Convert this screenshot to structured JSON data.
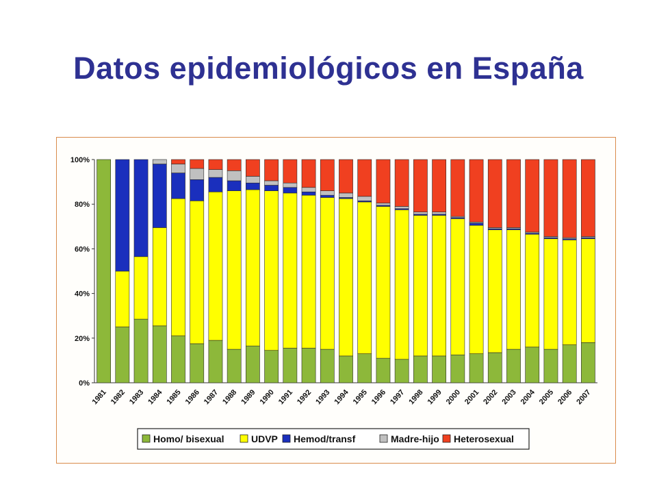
{
  "slide": {
    "title": "Datos epidemiológicos en España"
  },
  "chart_data": {
    "type": "bar",
    "stacked": true,
    "normalized": true,
    "categories": [
      "1981",
      "1982",
      "1983",
      "1984",
      "1985",
      "1986",
      "1987",
      "1988",
      "1989",
      "1990",
      "1991",
      "1992",
      "1993",
      "1994",
      "1995",
      "1996",
      "1997",
      "1998",
      "1999",
      "2000",
      "2001",
      "2002",
      "2003",
      "2004",
      "2005",
      "2006",
      "2007"
    ],
    "ylim": [
      0,
      100
    ],
    "yticks": [
      "0%",
      "20%",
      "40%",
      "60%",
      "80%",
      "100%"
    ],
    "grid": false,
    "legend_position": "bottom",
    "series": [
      {
        "name": "Homo/ bisexual",
        "color": "#8db83a",
        "values": [
          100,
          25,
          28.5,
          25.5,
          21,
          17.5,
          19,
          15,
          16.5,
          14.5,
          15.5,
          15.5,
          15,
          12,
          13,
          11,
          10.5,
          12,
          12,
          12.5,
          13,
          13.5,
          15,
          16,
          15,
          17,
          18
        ]
      },
      {
        "name": "UDVP",
        "color": "#ffff00",
        "values": [
          0,
          25,
          28,
          44,
          61.5,
          64,
          66.5,
          71,
          70,
          71.5,
          69.5,
          68.5,
          68,
          70.5,
          68,
          68,
          67,
          63,
          63,
          61,
          57.5,
          55,
          53.5,
          50.5,
          49.5,
          47,
          46.5
        ]
      },
      {
        "name": "Hemod/transf",
        "color": "#1a2fbd",
        "values": [
          0,
          50,
          43.5,
          28.5,
          11.5,
          9.5,
          6.5,
          4.5,
          3,
          2.5,
          2.5,
          1.5,
          1,
          0.5,
          0.5,
          0.5,
          0.5,
          0.5,
          0.5,
          0.5,
          1,
          0.5,
          0.5,
          0.5,
          0.5,
          0.5,
          0.5
        ]
      },
      {
        "name": "Madre-hijo",
        "color": "#c0c0c0",
        "values": [
          0,
          0,
          0,
          2,
          4,
          5,
          3.5,
          4.5,
          3,
          2,
          2,
          2,
          2,
          2,
          2,
          1,
          1,
          1,
          1,
          0.5,
          0.5,
          0.5,
          0.5,
          0.5,
          0.5,
          0.5,
          0.5
        ]
      },
      {
        "name": "Heterosexual",
        "color": "#f04020",
        "values": [
          0,
          0,
          0,
          0,
          2,
          4,
          4.5,
          5,
          7.5,
          9.5,
          10.5,
          12.5,
          14,
          15,
          16.5,
          19.5,
          21,
          23.5,
          23.5,
          25.5,
          28,
          30.5,
          30.5,
          32.5,
          34.5,
          35,
          34.5
        ]
      }
    ]
  }
}
